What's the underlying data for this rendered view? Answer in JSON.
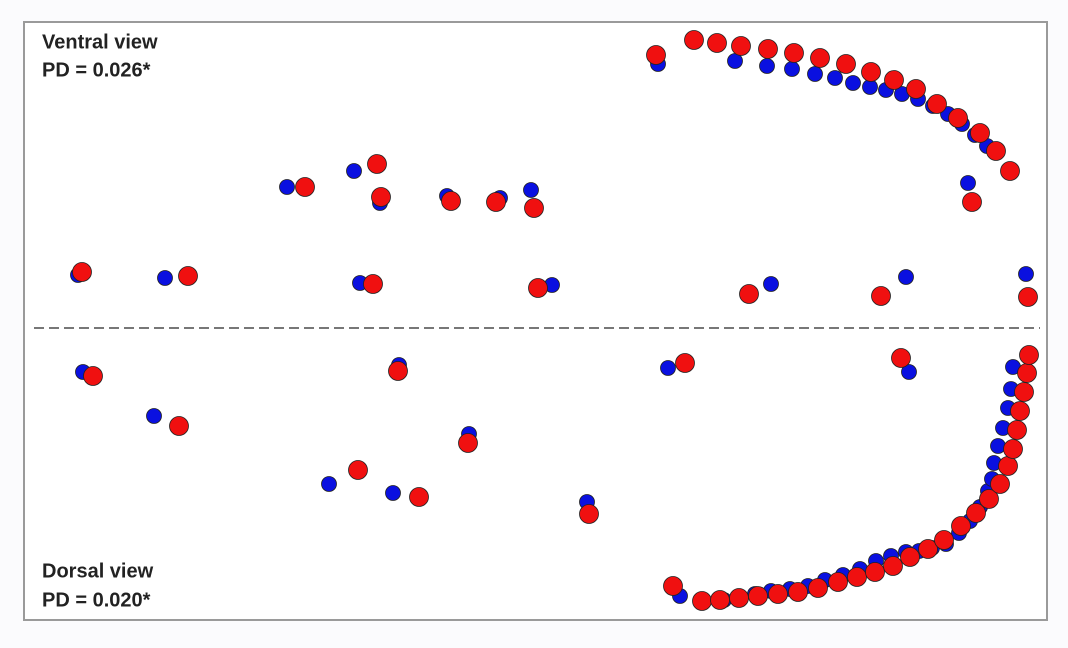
{
  "chart_data": [
    {
      "type": "scatter",
      "title": "Ventral view",
      "annotation": "PD = 0.026*",
      "xlim": [
        0,
        1023
      ],
      "ylim": [
        0,
        306
      ],
      "series": [
        {
          "color": "#0a10e0",
          "x": [
            634,
            711,
            743,
            768,
            791,
            811,
            829,
            846,
            862,
            878,
            894,
            909,
            924,
            938,
            951,
            963,
            944,
            263,
            330,
            356,
            423,
            476,
            507,
            54,
            141,
            336,
            528,
            747,
            882,
            1002
          ],
          "values": [
            264,
            267,
            262,
            259,
            254,
            250,
            245,
            241,
            238,
            234,
            229,
            222,
            214,
            204,
            193,
            182,
            145,
            141,
            157,
            125,
            132,
            130,
            138,
            53,
            50,
            45,
            43,
            44,
            51,
            54
          ]
        },
        {
          "color": "#f01010",
          "x": [
            632,
            670,
            693,
            717,
            744,
            770,
            796,
            822,
            847,
            870,
            892,
            913,
            934,
            956,
            972,
            986,
            948,
            281,
            353,
            357,
            427,
            472,
            510,
            58,
            164,
            349,
            514,
            725,
            857,
            1004
          ],
          "values": [
            273,
            288,
            285,
            282,
            279,
            275,
            270,
            264,
            256,
            248,
            239,
            224,
            210,
            195,
            177,
            157,
            126,
            141,
            164,
            131,
            127,
            126,
            120,
            56,
            52,
            44,
            40,
            34,
            32,
            31
          ]
        }
      ]
    },
    {
      "type": "scatter",
      "title": "Dorsal view",
      "annotation": "PD = 0.020*",
      "xlim": [
        0,
        1023
      ],
      "ylim": [
        0,
        292
      ],
      "series": [
        {
          "color": "#0a10e0",
          "x": [
            59,
            130,
            375,
            445,
            305,
            369,
            563,
            644,
            885,
            656,
            700,
            731,
            747,
            766,
            784,
            801,
            819,
            836,
            852,
            867,
            882,
            895,
            908,
            922,
            935,
            946,
            956,
            964,
            968,
            970,
            974,
            979,
            984,
            987,
            989
          ],
          "values": [
            248,
            204,
            255,
            186,
            136,
            127,
            118,
            252,
            248,
            24,
            20,
            26,
            29,
            31,
            34,
            40,
            45,
            51,
            59,
            64,
            68,
            69,
            72,
            76,
            87,
            99,
            113,
            129,
            141,
            157,
            174,
            192,
            212,
            231,
            253
          ]
        },
        {
          "color": "#f01010",
          "x": [
            69,
            155,
            374,
            444,
            334,
            395,
            565,
            661,
            877,
            649,
            678,
            696,
            715,
            734,
            754,
            774,
            794,
            814,
            833,
            851,
            869,
            886,
            904,
            920,
            937,
            952,
            965,
            976,
            984,
            989,
            993,
            996,
            1000,
            1003,
            1005
          ],
          "values": [
            244,
            194,
            249,
            177,
            150,
            123,
            106,
            257,
            262,
            34,
            19,
            20,
            22,
            24,
            26,
            28,
            32,
            38,
            43,
            48,
            54,
            63,
            71,
            80,
            94,
            107,
            121,
            136,
            154,
            171,
            190,
            209,
            228,
            247,
            265
          ]
        }
      ]
    }
  ]
}
